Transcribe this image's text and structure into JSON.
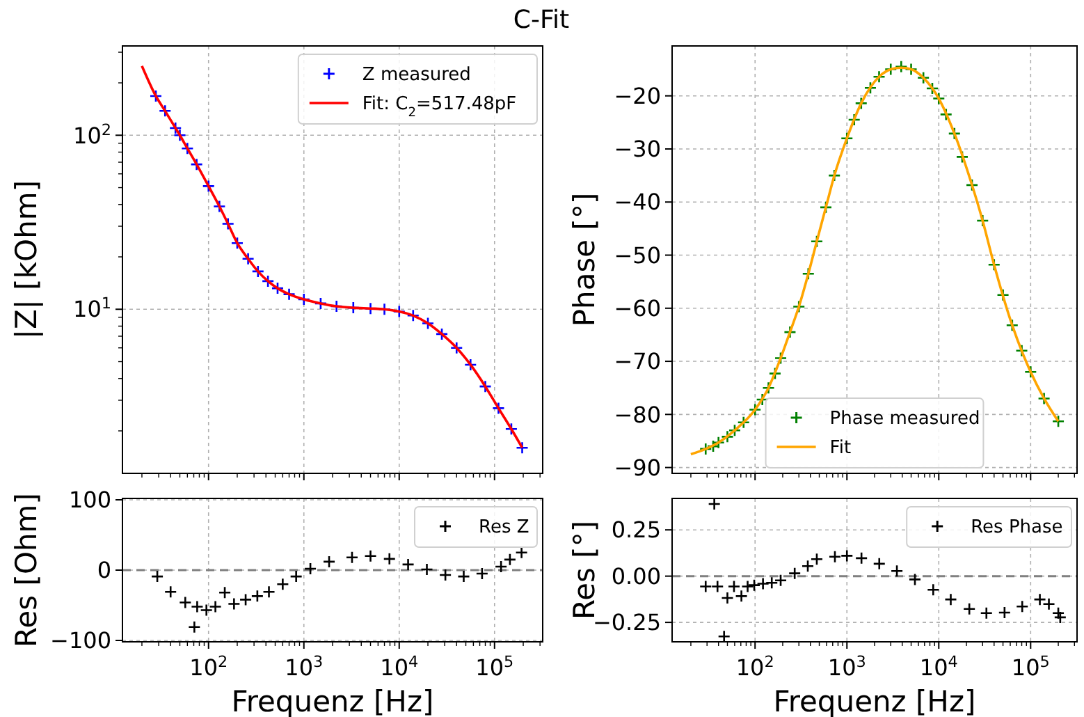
{
  "chart_data": [
    {
      "type": "scatter",
      "title": "C-Fit",
      "ylabel": "|Z| [kOhm]",
      "log": "xy",
      "grid": true,
      "legend": "top right",
      "tick_labels": "y",
      "xlim": [
        12.5,
        320000
      ],
      "ylim": [
        1.14,
        326
      ],
      "xticks": [
        {
          "value": 100,
          "label": null
        },
        {
          "value": 1000,
          "label": null
        },
        {
          "value": 10000,
          "label": null
        },
        {
          "value": 100000,
          "label": null
        }
      ],
      "yticks": [
        {
          "value": 10,
          "label": "10$^{1}$"
        },
        {
          "value": 100,
          "label": "10$^{2}$"
        }
      ],
      "series": [
        {
          "name": "Z measured",
          "type": "scatter",
          "marker": "cross",
          "color": "#0000ff",
          "x": [
            28,
            35,
            45,
            50,
            60,
            75,
            100,
            130,
            160,
            200,
            260,
            330,
            420,
            530,
            700,
            1000,
            1500,
            2200,
            3300,
            5000,
            7000,
            10000,
            14000,
            20000,
            28000,
            40000,
            56000,
            80000,
            110000,
            150000,
            195000
          ],
          "values": [
            168,
            138,
            110,
            100,
            84,
            68,
            51,
            39,
            31,
            24,
            19.5,
            16.5,
            14.5,
            13.2,
            12.2,
            11.4,
            10.8,
            10.4,
            10.2,
            10.1,
            10.0,
            9.7,
            9.2,
            8.3,
            7.2,
            6.0,
            4.8,
            3.6,
            2.7,
            2.05,
            1.6
          ]
        },
        {
          "name": "Fit: C$_{2}$=517.48pF",
          "type": "line",
          "color": "#ff0000",
          "x": [
            20,
            28,
            35,
            45,
            50,
            60,
            75,
            100,
            130,
            160,
            200,
            260,
            330,
            420,
            530,
            700,
            1000,
            1500,
            2200,
            3300,
            5000,
            7000,
            10000,
            14000,
            20000,
            28000,
            40000,
            56000,
            80000,
            110000,
            150000,
            195000
          ],
          "values": [
            250,
            168,
            138,
            110,
            100,
            84,
            68,
            51,
            39,
            31,
            24,
            19.5,
            16.5,
            14.5,
            13.2,
            12.2,
            11.4,
            10.8,
            10.4,
            10.2,
            10.1,
            10.0,
            9.7,
            9.2,
            8.3,
            7.2,
            6.0,
            4.8,
            3.6,
            2.7,
            2.05,
            1.6
          ]
        }
      ]
    },
    {
      "type": "scatter",
      "ylabel": "Phase [°]",
      "log": "x",
      "grid": true,
      "legend": "bottom",
      "tick_labels": "y",
      "xlim": [
        12.5,
        320000
      ],
      "ylim": [
        -91.1,
        -10.6
      ],
      "xticks": [
        {
          "value": 100,
          "label": null
        },
        {
          "value": 1000,
          "label": null
        },
        {
          "value": 10000,
          "label": null
        },
        {
          "value": 100000,
          "label": null
        }
      ],
      "yticks": [
        {
          "value": -90,
          "label": "−90"
        },
        {
          "value": -80,
          "label": "−80"
        },
        {
          "value": -70,
          "label": "−70"
        },
        {
          "value": -60,
          "label": "−60"
        },
        {
          "value": -50,
          "label": "−50"
        },
        {
          "value": -40,
          "label": "−40"
        },
        {
          "value": -30,
          "label": "−30"
        },
        {
          "value": -20,
          "label": "−20"
        }
      ],
      "series": [
        {
          "name": "Phase measured",
          "type": "scatter",
          "marker": "cross",
          "color": "#008000",
          "x": [
            29,
            35,
            40,
            50,
            60,
            75,
            100,
            120,
            140,
            165,
            190,
            240,
            300,
            380,
            470,
            590,
            730,
            1000,
            1200,
            1430,
            1800,
            2240,
            3000,
            3900,
            5000,
            6800,
            8500,
            10000,
            12000,
            14800,
            18000,
            23000,
            30000,
            40000,
            50000,
            63000,
            80000,
            100000,
            140000,
            200000
          ],
          "values": [
            -86.5,
            -86,
            -85.3,
            -84.2,
            -83,
            -81.5,
            -79.1,
            -77.2,
            -75,
            -72.3,
            -69.4,
            -64.5,
            -59.7,
            -53.5,
            -47.4,
            -41,
            -35,
            -28,
            -24.5,
            -21.4,
            -18.5,
            -16.4,
            -15,
            -14.5,
            -15,
            -16.6,
            -18.6,
            -20.5,
            -23.5,
            -27.1,
            -31.5,
            -36.8,
            -43.5,
            -51.8,
            -57.5,
            -63.2,
            -68,
            -72,
            -77,
            -81.3
          ]
        },
        {
          "name": "Fit",
          "type": "line",
          "color": "#ffa500",
          "x": [
            20,
            29,
            40,
            60,
            100,
            140,
            190,
            240,
            300,
            380,
            470,
            590,
            730,
            1000,
            1430,
            2240,
            3000,
            3900,
            5000,
            6800,
            10000,
            14800,
            23000,
            30000,
            40000,
            63000,
            100000,
            140000,
            200000
          ],
          "values": [
            -87.5,
            -86.5,
            -85.3,
            -83,
            -79.1,
            -75,
            -69.4,
            -64.5,
            -59.7,
            -53.5,
            -47.4,
            -41,
            -35,
            -28,
            -21.4,
            -16.4,
            -15,
            -14.7,
            -15,
            -16.6,
            -20.5,
            -27.1,
            -36.8,
            -43.5,
            -51.8,
            -63.2,
            -72,
            -77,
            -81.3
          ]
        }
      ]
    },
    {
      "type": "scatter",
      "xlabel": "Frequenz [Hz]",
      "ylabel": "Res [Ohm]",
      "log": "x",
      "grid": true,
      "legend": "top right",
      "xlim": [
        12.5,
        320000
      ],
      "ylim": [
        -102,
        102
      ],
      "xticks": [
        {
          "value": 100,
          "label": "10$^{2}$"
        },
        {
          "value": 1000,
          "label": "10$^{3}$"
        },
        {
          "value": 10000,
          "label": "10$^{4}$"
        },
        {
          "value": 100000,
          "label": "10$^{5}$"
        }
      ],
      "yticks": [
        {
          "value": -100,
          "label": "−100"
        },
        0,
        100
      ],
      "ref_lines": [
        {
          "axis": "y",
          "value": 0,
          "color": "#808080",
          "line_style": "dashed"
        }
      ],
      "series": [
        {
          "name": "Res Z",
          "type": "scatter",
          "marker": "cross",
          "color": "#000000",
          "x": [
            29,
            40,
            57,
            71,
            76,
            95,
            118,
            148,
            185,
            245,
            325,
            430,
            600,
            830,
            1170,
            1840,
            3200,
            5000,
            7900,
            12400,
            19500,
            30500,
            47500,
            74000,
            117000,
            145000,
            192000
          ],
          "values": [
            -9,
            -31,
            -46,
            -81,
            -52,
            -57,
            -52,
            -32,
            -48,
            -42,
            -37,
            -31,
            -20,
            -9,
            2,
            12,
            18,
            20,
            16,
            8,
            1,
            -7,
            -9,
            -5,
            5,
            15,
            25
          ]
        }
      ]
    },
    {
      "type": "scatter",
      "xlabel": "Frequenz [Hz]",
      "ylabel": "Res [°]",
      "log": "x",
      "grid": true,
      "legend": "top right",
      "xlim": [
        12.5,
        320000
      ],
      "ylim": [
        -0.355,
        0.42
      ],
      "xticks": [
        {
          "value": 100,
          "label": "10$^{2}$"
        },
        {
          "value": 1000,
          "label": "10$^{3}$"
        },
        {
          "value": 10000,
          "label": "10$^{4}$"
        },
        {
          "value": 100000,
          "label": "10$^{5}$"
        }
      ],
      "yticks": [
        {
          "value": -0.25,
          "label": "−0.25"
        },
        {
          "value": 0,
          "label": "0.00"
        },
        {
          "value": 0.25,
          "label": "0.25"
        }
      ],
      "ref_lines": [
        {
          "axis": "y",
          "value": 0,
          "color": "#808080",
          "line_style": "dashed"
        }
      ],
      "series": [
        {
          "name": "Res Phase",
          "type": "scatter",
          "marker": "cross",
          "color": "#000000",
          "x": [
            29,
            36,
            39,
            46,
            50,
            59,
            71,
            83,
            98,
            122,
            152,
            190,
            270,
            375,
            470,
            740,
            1000,
            1440,
            2250,
            3500,
            5500,
            8700,
            13500,
            21500,
            33000,
            52000,
            81000,
            126000,
            158000,
            200000,
            210000
          ],
          "values": [
            -0.056,
            0.39,
            -0.056,
            -0.326,
            -0.118,
            -0.056,
            -0.108,
            -0.056,
            -0.049,
            -0.041,
            -0.036,
            -0.023,
            0.015,
            0.054,
            0.092,
            0.105,
            0.11,
            0.097,
            0.067,
            0.028,
            -0.018,
            -0.074,
            -0.126,
            -0.177,
            -0.2,
            -0.197,
            -0.164,
            -0.126,
            -0.151,
            -0.2,
            -0.223
          ]
        }
      ]
    }
  ]
}
